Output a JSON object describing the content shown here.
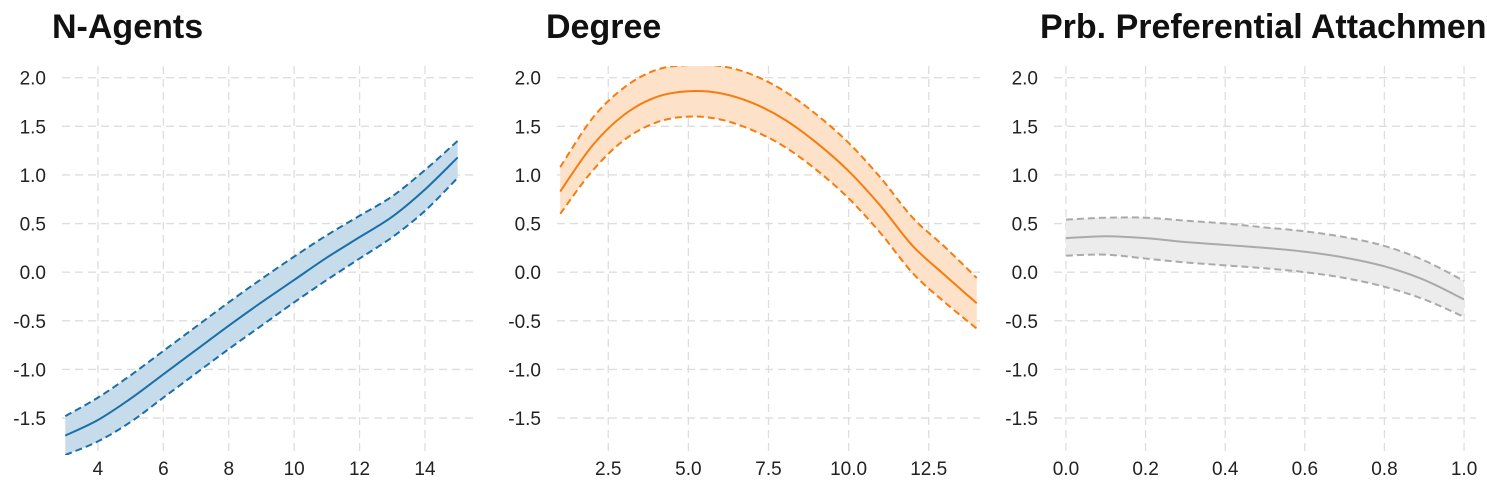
{
  "chart_data": [
    {
      "type": "line",
      "title": "N-Agents",
      "color": "#1a6fa8",
      "fill_color": "#c7dceb",
      "xlim": [
        2.9,
        15.5
      ],
      "ylim": [
        -1.88,
        2.12
      ],
      "xticks": [
        4,
        6,
        8,
        10,
        12,
        14
      ],
      "xtick_labels": [
        "4",
        "6",
        "8",
        "10",
        "12",
        "14"
      ],
      "yticks": [
        2.0,
        1.5,
        1.0,
        0.5,
        0.0,
        -0.5,
        -1.0,
        -1.5
      ],
      "ytick_labels": [
        "2.0",
        "1.5",
        "1.0",
        "0.5",
        "0.0",
        "-0.5",
        "-1.0",
        "-1.5"
      ],
      "grid": true,
      "x": [
        3,
        4,
        5,
        6,
        7,
        8,
        9,
        10,
        11,
        12,
        13,
        14,
        15
      ],
      "series": [
        {
          "role": "mean",
          "line": "solid",
          "values": [
            -1.68,
            -1.52,
            -1.3,
            -1.05,
            -0.8,
            -0.55,
            -0.31,
            -0.08,
            0.15,
            0.36,
            0.57,
            0.85,
            1.18
          ]
        },
        {
          "role": "upper",
          "line": "dashed",
          "values": [
            -1.48,
            -1.29,
            -1.06,
            -0.81,
            -0.56,
            -0.31,
            -0.07,
            0.16,
            0.38,
            0.58,
            0.78,
            1.05,
            1.35
          ]
        },
        {
          "role": "lower",
          "line": "dashed",
          "values": [
            -1.88,
            -1.74,
            -1.54,
            -1.29,
            -1.04,
            -0.79,
            -0.55,
            -0.31,
            -0.08,
            0.14,
            0.36,
            0.63,
            0.97
          ]
        }
      ]
    },
    {
      "type": "line",
      "title": "Degree",
      "color": "#f57d0f",
      "fill_color": "#fde1c9",
      "xlim": [
        0.9,
        14.1
      ],
      "ylim": [
        -1.88,
        2.12
      ],
      "xticks": [
        2.5,
        5.0,
        7.5,
        10.0,
        12.5
      ],
      "xtick_labels": [
        "2.5",
        "5.0",
        "7.5",
        "10.0",
        "12.5"
      ],
      "yticks": [
        2.0,
        1.5,
        1.0,
        0.5,
        0.0,
        -0.5,
        -1.0,
        -1.5
      ],
      "ytick_labels": [
        "2.0",
        "1.5",
        "1.0",
        "0.5",
        "0.0",
        "-0.5",
        "-1.0",
        "-1.5"
      ],
      "grid": true,
      "x": [
        1,
        2,
        3,
        4,
        5,
        6,
        7,
        8,
        9,
        10,
        11,
        12,
        13,
        14
      ],
      "series": [
        {
          "role": "mean",
          "line": "solid",
          "values": [
            0.83,
            1.3,
            1.62,
            1.8,
            1.86,
            1.84,
            1.74,
            1.57,
            1.33,
            1.04,
            0.68,
            0.27,
            -0.03,
            -0.32
          ]
        },
        {
          "role": "upper",
          "line": "dashed",
          "values": [
            1.08,
            1.58,
            1.9,
            2.08,
            2.13,
            2.12,
            2.03,
            1.86,
            1.62,
            1.33,
            0.97,
            0.56,
            0.26,
            -0.06
          ]
        },
        {
          "role": "lower",
          "line": "dashed",
          "values": [
            0.6,
            1.04,
            1.36,
            1.54,
            1.6,
            1.57,
            1.46,
            1.29,
            1.05,
            0.76,
            0.4,
            -0.01,
            -0.31,
            -0.58
          ]
        }
      ]
    },
    {
      "type": "line",
      "title": "Prb. Preferential Attachment",
      "color": "#aaaaaa",
      "fill_color": "#ececec",
      "xlim": [
        -0.03,
        1.03
      ],
      "ylim": [
        -1.88,
        2.12
      ],
      "xticks": [
        0.0,
        0.2,
        0.4,
        0.6,
        0.8,
        1.0
      ],
      "xtick_labels": [
        "0.0",
        "0.2",
        "0.4",
        "0.6",
        "0.8",
        "1.0"
      ],
      "yticks": [
        2.0,
        1.5,
        1.0,
        0.5,
        0.0,
        -0.5,
        -1.0,
        -1.5
      ],
      "ytick_labels": [
        "2.0",
        "1.5",
        "1.0",
        "0.5",
        "0.0",
        "-0.5",
        "-1.0",
        "-1.5"
      ],
      "grid": true,
      "x": [
        0.0,
        0.1,
        0.2,
        0.3,
        0.4,
        0.5,
        0.6,
        0.7,
        0.8,
        0.9,
        1.0
      ],
      "series": [
        {
          "role": "mean",
          "line": "solid",
          "values": [
            0.35,
            0.37,
            0.35,
            0.31,
            0.28,
            0.25,
            0.21,
            0.15,
            0.06,
            -0.08,
            -0.28
          ]
        },
        {
          "role": "upper",
          "line": "dashed",
          "values": [
            0.54,
            0.56,
            0.56,
            0.53,
            0.5,
            0.46,
            0.42,
            0.36,
            0.27,
            0.12,
            -0.09
          ]
        },
        {
          "role": "lower",
          "line": "dashed",
          "values": [
            0.17,
            0.18,
            0.14,
            0.1,
            0.07,
            0.04,
            0.0,
            -0.06,
            -0.15,
            -0.28,
            -0.46
          ]
        }
      ]
    }
  ]
}
